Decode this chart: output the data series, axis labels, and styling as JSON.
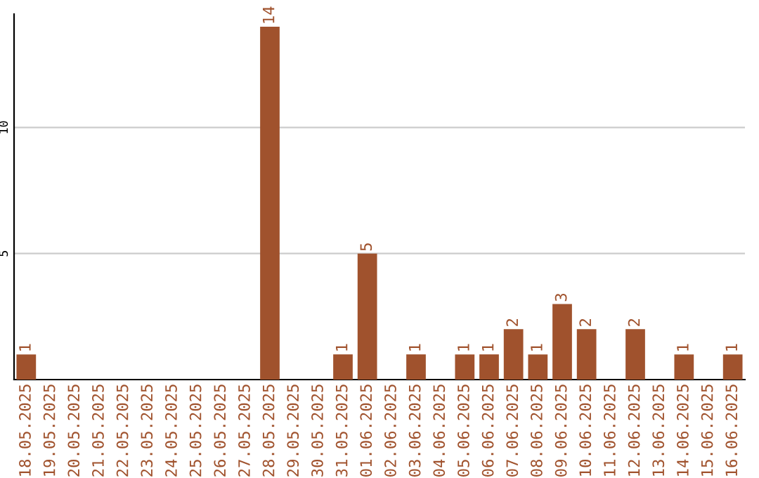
{
  "chart_data": {
    "type": "bar",
    "categories": [
      "18.05.2025",
      "19.05.2025",
      "20.05.2025",
      "21.05.2025",
      "22.05.2025",
      "23.05.2025",
      "24.05.2025",
      "25.05.2025",
      "26.05.2025",
      "27.05.2025",
      "28.05.2025",
      "29.05.2025",
      "30.05.2025",
      "31.05.2025",
      "01.06.2025",
      "02.06.2025",
      "03.06.2025",
      "04.06.2025",
      "05.06.2025",
      "06.06.2025",
      "07.06.2025",
      "08.06.2025",
      "09.06.2025",
      "10.06.2025",
      "11.06.2025",
      "12.06.2025",
      "13.06.2025",
      "14.06.2025",
      "15.06.2025",
      "16.06.2025"
    ],
    "values": [
      1,
      0,
      0,
      0,
      0,
      0,
      0,
      0,
      0,
      0,
      14,
      0,
      0,
      1,
      5,
      0,
      1,
      0,
      1,
      1,
      2,
      1,
      3,
      2,
      0,
      2,
      0,
      1,
      0,
      1
    ],
    "value_labels": [
      "1",
      null,
      null,
      null,
      null,
      null,
      null,
      null,
      null,
      null,
      "14",
      null,
      null,
      "1",
      "5",
      null,
      "1",
      null,
      "1",
      "1",
      "2",
      "1",
      "3",
      "2",
      null,
      "2",
      null,
      "1",
      null,
      "1"
    ],
    "color": "#a0522d",
    "ylim": [
      0,
      14.5
    ],
    "yticks": [
      5,
      10
    ],
    "grid": "y"
  }
}
